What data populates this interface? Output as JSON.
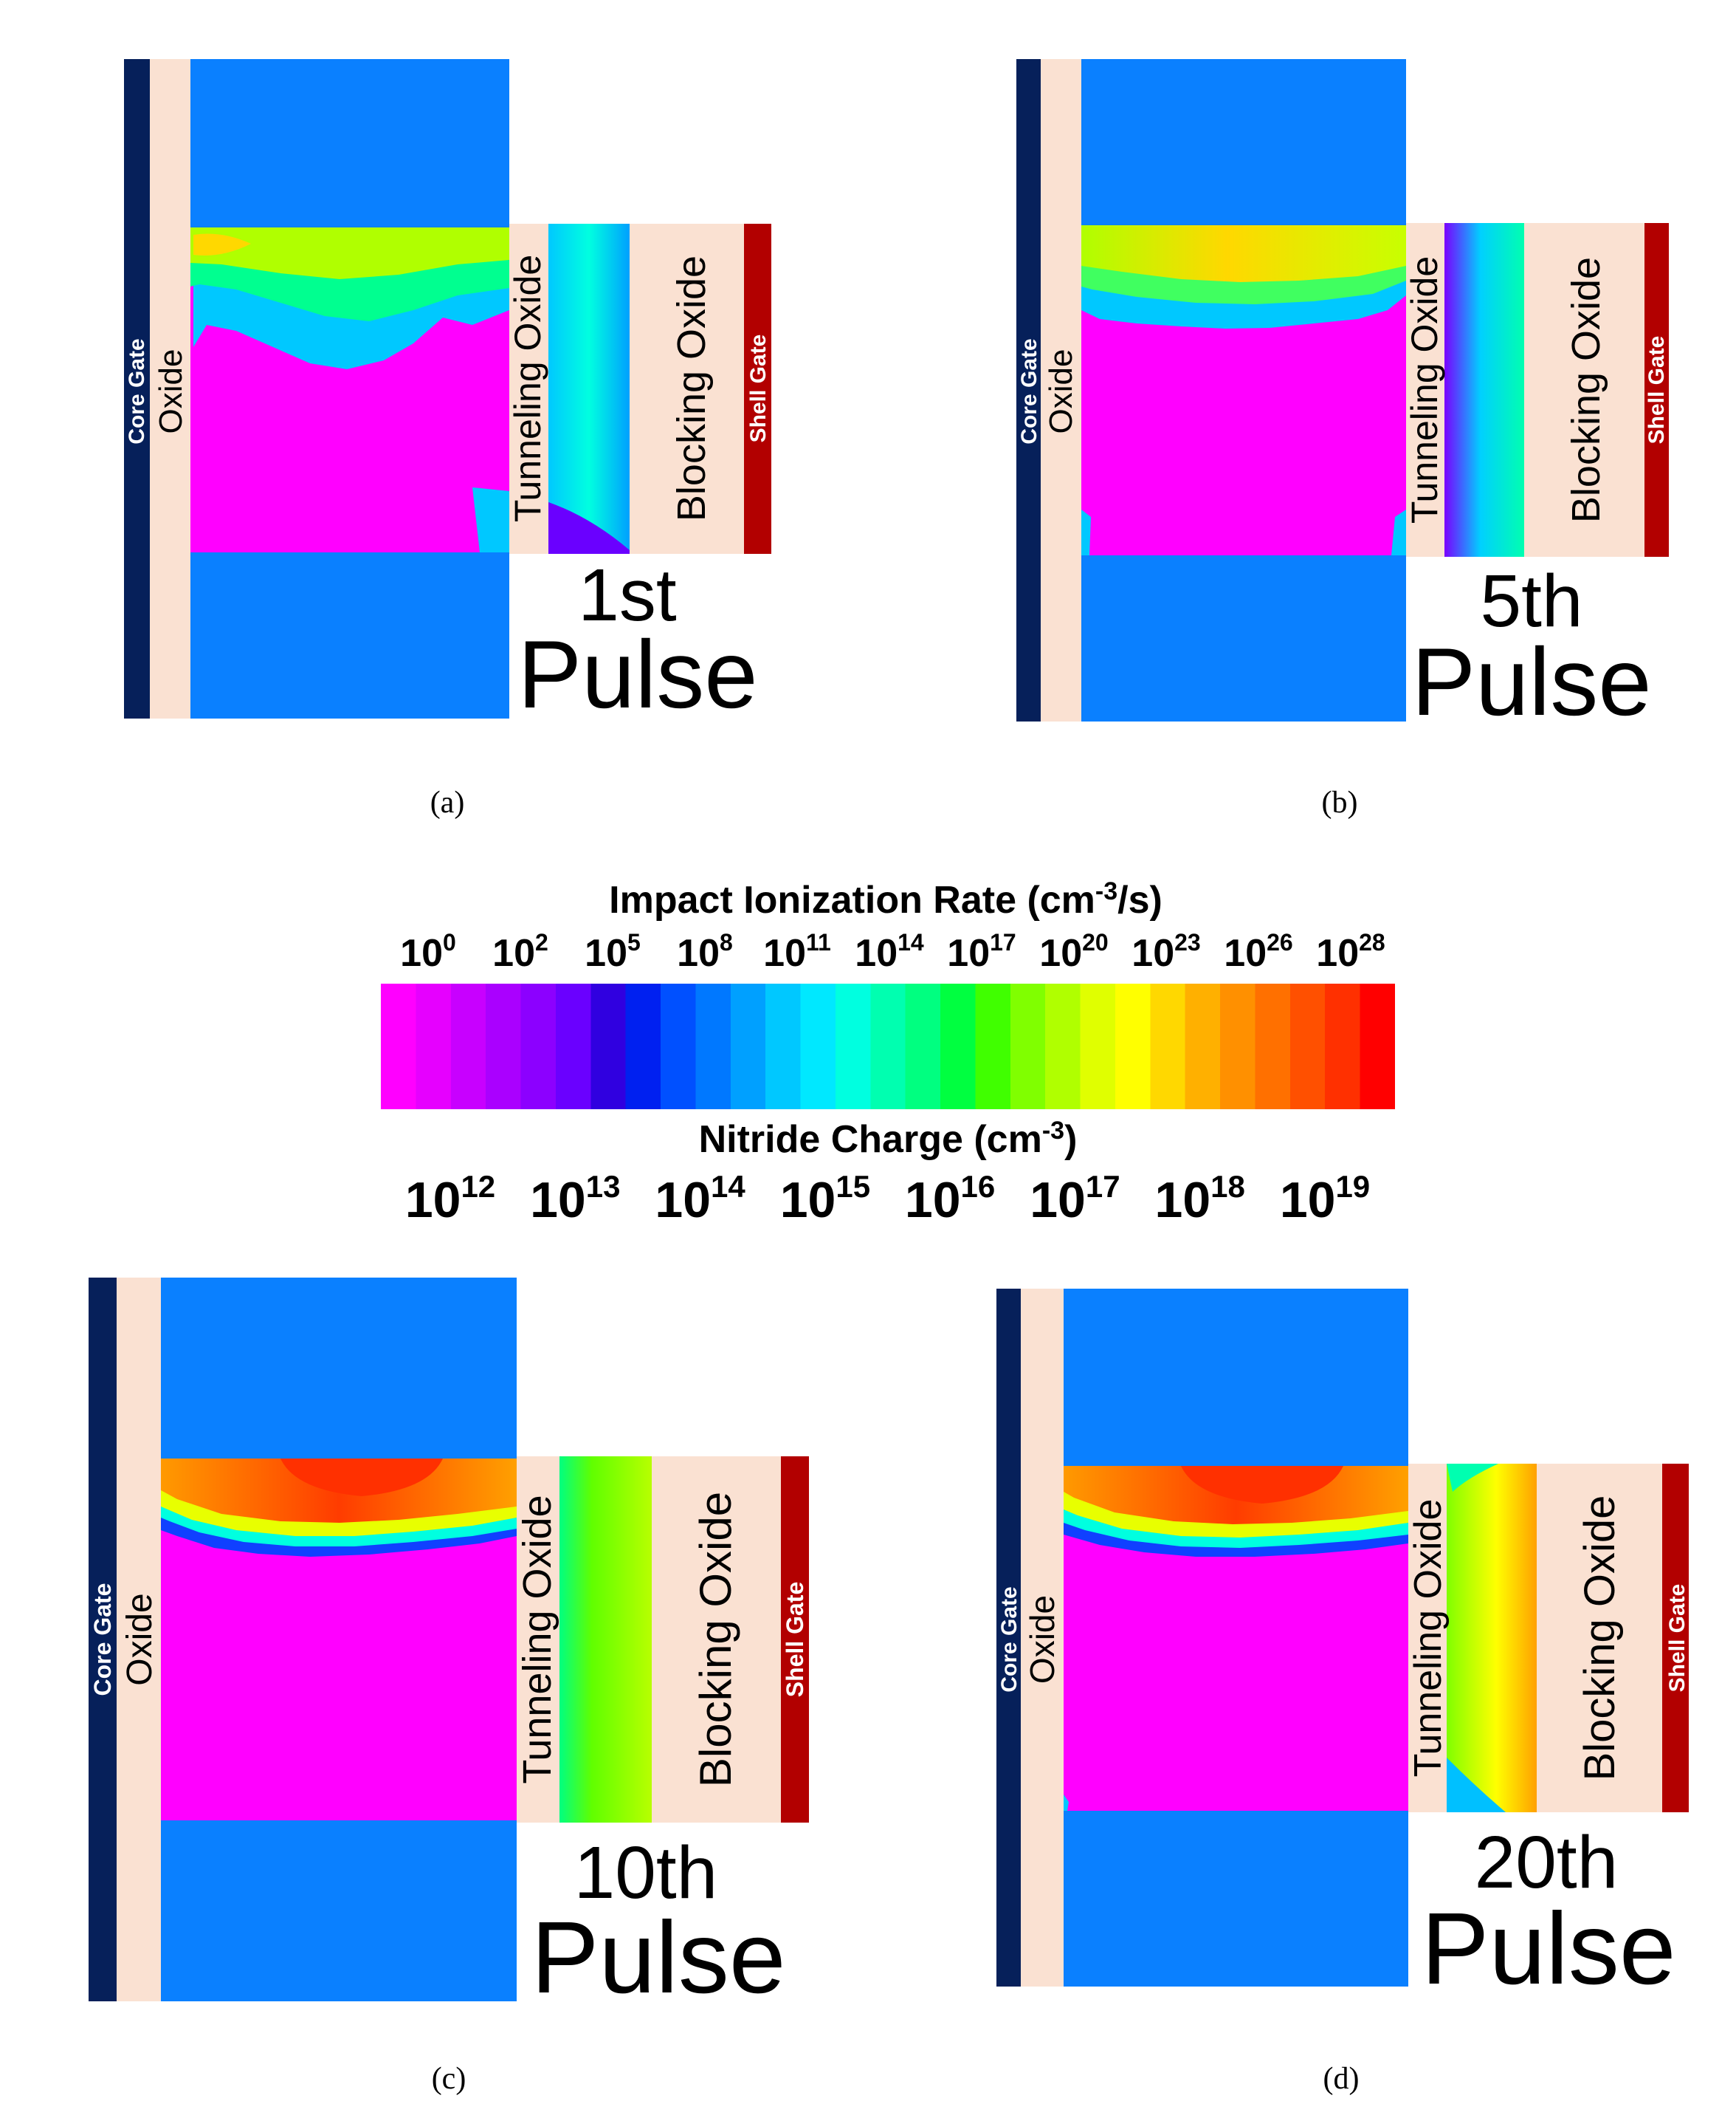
{
  "colors": {
    "gate_navy": "#06205a",
    "oxide_peach": "#fae1d2",
    "channel_blue": "#0a80ff",
    "shell_red": "#b20000",
    "magenta": "#ff00ff"
  },
  "legend": {
    "impact_title_main": "Impact Ionization Rate (cm",
    "impact_title_exp": "-3",
    "impact_title_end": "/s)",
    "impact_ticks": [
      {
        "base": "10",
        "exp": "0"
      },
      {
        "base": "10",
        "exp": "2"
      },
      {
        "base": "10",
        "exp": "5"
      },
      {
        "base": "10",
        "exp": "8"
      },
      {
        "base": "10",
        "exp": "11"
      },
      {
        "base": "10",
        "exp": "14"
      },
      {
        "base": "10",
        "exp": "17"
      },
      {
        "base": "10",
        "exp": "20"
      },
      {
        "base": "10",
        "exp": "23"
      },
      {
        "base": "10",
        "exp": "26"
      },
      {
        "base": "10",
        "exp": "28"
      }
    ],
    "nitride_title_main": "Nitride Charge (cm",
    "nitride_title_exp": "-3",
    "nitride_title_end": ")",
    "nitride_ticks": [
      {
        "base": "10",
        "exp": "12"
      },
      {
        "base": "10",
        "exp": "13"
      },
      {
        "base": "10",
        "exp": "14"
      },
      {
        "base": "10",
        "exp": "15"
      },
      {
        "base": "10",
        "exp": "16"
      },
      {
        "base": "10",
        "exp": "17"
      },
      {
        "base": "10",
        "exp": "18"
      },
      {
        "base": "10",
        "exp": "19"
      }
    ],
    "colorbar_stops": [
      "#ff00ff",
      "#e600ff",
      "#c800ff",
      "#aa00ff",
      "#8c00ff",
      "#6a00ff",
      "#3000e0",
      "#0020f0",
      "#0050ff",
      "#0078ff",
      "#00a0ff",
      "#00c8ff",
      "#00e8ff",
      "#00ffe0",
      "#00ffb0",
      "#00ff80",
      "#00ff40",
      "#40ff00",
      "#80ff00",
      "#b0ff00",
      "#e0ff00",
      "#ffff00",
      "#ffd800",
      "#ffb000",
      "#ff9000",
      "#ff7000",
      "#ff5000",
      "#ff3000",
      "#ff0000"
    ]
  },
  "panels": [
    {
      "caption": "(a)",
      "pulse_number": "1st",
      "pulse_word": "Pulse",
      "core_gate_label": "Core Gate",
      "oxide_label": "Oxide",
      "tunneling_label": "Tunneling Oxide",
      "blocking_label": "Blocking Oxide",
      "shell_gate_label": "Shell Gate"
    },
    {
      "caption": "(b)",
      "pulse_number": "5th",
      "pulse_word": "Pulse",
      "core_gate_label": "Core Gate",
      "oxide_label": "Oxide",
      "tunneling_label": "Tunneling Oxide",
      "blocking_label": "Blocking Oxide",
      "shell_gate_label": "Shell Gate"
    },
    {
      "caption": "(c)",
      "pulse_number": "10th",
      "pulse_word": "Pulse",
      "core_gate_label": "Core Gate",
      "oxide_label": "Oxide",
      "tunneling_label": "Tunneling Oxide",
      "blocking_label": "Blocking Oxide",
      "shell_gate_label": "Shell Gate"
    },
    {
      "caption": "(d)",
      "pulse_number": "20th",
      "pulse_word": "Pulse",
      "core_gate_label": "Core Gate",
      "oxide_label": "Oxide",
      "tunneling_label": "Tunneling Oxide",
      "blocking_label": "Blocking Oxide",
      "shell_gate_label": "Shell Gate"
    }
  ]
}
